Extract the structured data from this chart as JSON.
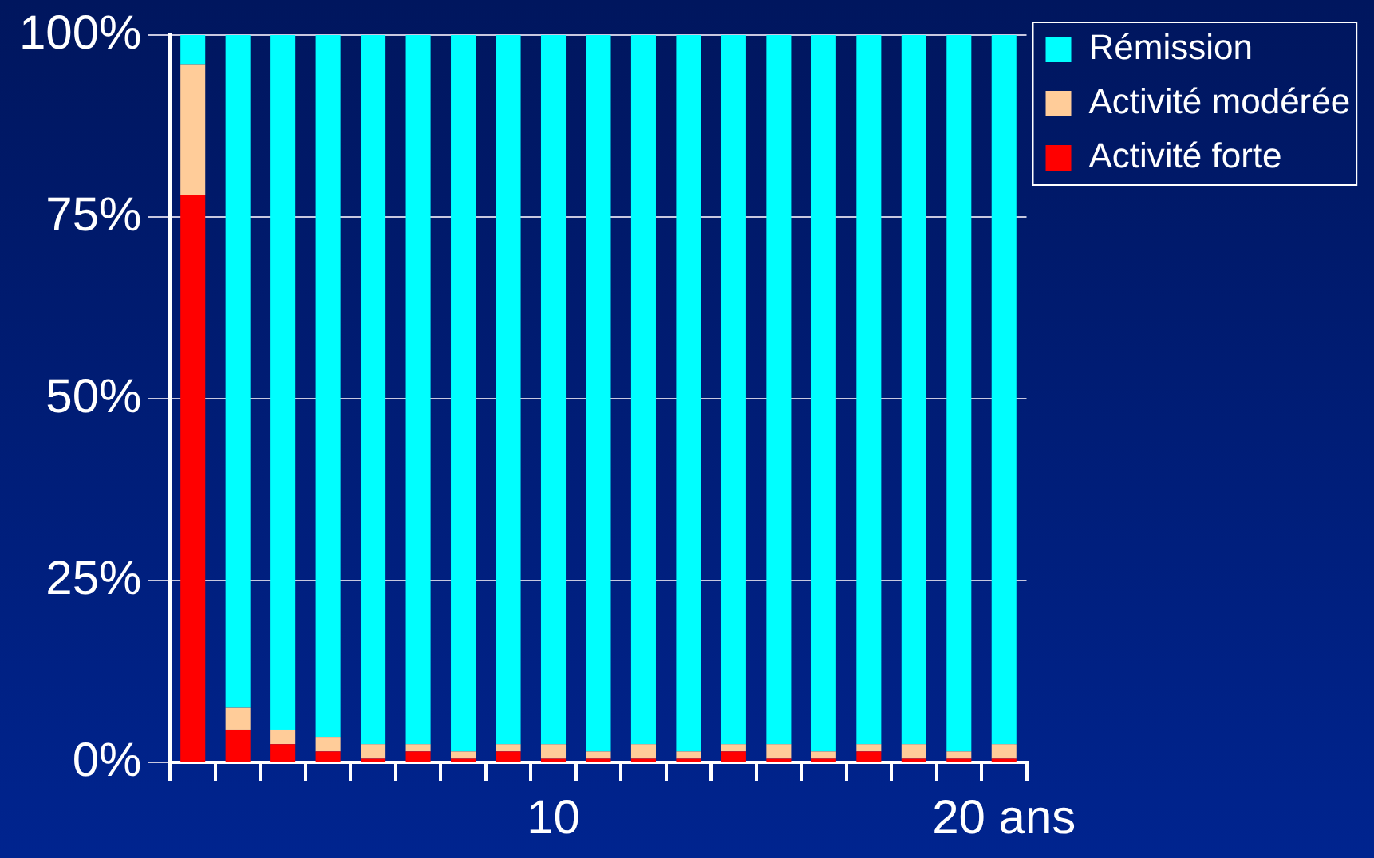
{
  "chart_data": {
    "type": "bar",
    "stacked": true,
    "categories": [
      null,
      null,
      null,
      null,
      null,
      null,
      null,
      null,
      "10",
      null,
      null,
      null,
      null,
      null,
      null,
      null,
      null,
      null,
      "20 ans"
    ],
    "series": [
      {
        "name": "Activité forte",
        "color": "#ff0000",
        "values": [
          78,
          4.5,
          2.5,
          1.5,
          0.5,
          1.5,
          0.5,
          1.5,
          0.5,
          0.5,
          0.5,
          0.5,
          1.5,
          0.5,
          0.5,
          1.5,
          0.5,
          0.5,
          0.5
        ]
      },
      {
        "name": "Activité modérée",
        "color": "#ffcc99",
        "values": [
          18,
          3,
          2,
          2,
          2,
          1,
          1,
          1,
          2,
          1,
          2,
          1,
          1,
          2,
          1,
          1,
          2,
          1,
          2
        ]
      },
      {
        "name": "Rémission",
        "color": "#00ffff",
        "values": [
          4,
          92.5,
          95.5,
          96.5,
          97.5,
          97.5,
          98.5,
          97.5,
          97.5,
          98.5,
          97.5,
          98.5,
          97.5,
          97.5,
          98.5,
          97.5,
          97.5,
          98.5,
          97.5
        ]
      }
    ],
    "ylim": [
      0,
      100
    ],
    "yticks": [
      {
        "value": 0,
        "label": "0%"
      },
      {
        "value": 25,
        "label": "25%"
      },
      {
        "value": 50,
        "label": "50%"
      },
      {
        "value": 75,
        "label": "75%"
      },
      {
        "value": 100,
        "label": "100%"
      }
    ],
    "grid": "y",
    "legend": "right"
  }
}
